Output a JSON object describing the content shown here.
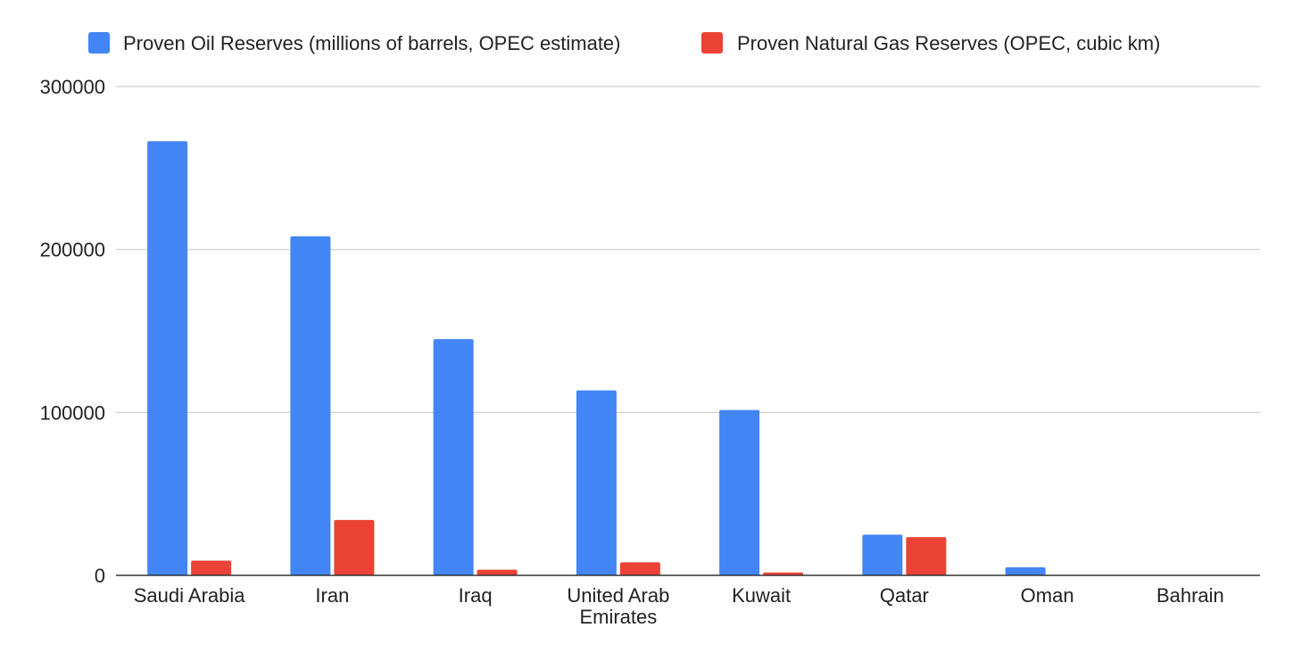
{
  "chart_data": {
    "type": "bar",
    "title": "",
    "xlabel": "",
    "ylabel": "",
    "categories": [
      [
        "Saudi Arabia"
      ],
      [
        "Iran"
      ],
      [
        "Iraq"
      ],
      [
        "United Arab",
        "Emirates"
      ],
      [
        "Kuwait"
      ],
      [
        "Qatar"
      ],
      [
        "Oman"
      ],
      [
        "Bahrain"
      ]
    ],
    "series": [
      {
        "name": "Proven Oil Reserves (millions of barrels, OPEC estimate)",
        "color": "#4285f4",
        "values": [
          266500,
          208000,
          145000,
          113500,
          101500,
          25000,
          5000,
          120
        ]
      },
      {
        "name": "Proven Natural Gas Reserves (OPEC, cubic km)",
        "color": "#ea4335",
        "values": [
          9000,
          34000,
          3500,
          8000,
          1800,
          23500,
          250,
          100
        ]
      }
    ],
    "ylim": [
      0,
      300000
    ],
    "yticks": [
      "0",
      "100000",
      "200000",
      "300000"
    ],
    "grid": true,
    "legend_position": "top"
  }
}
